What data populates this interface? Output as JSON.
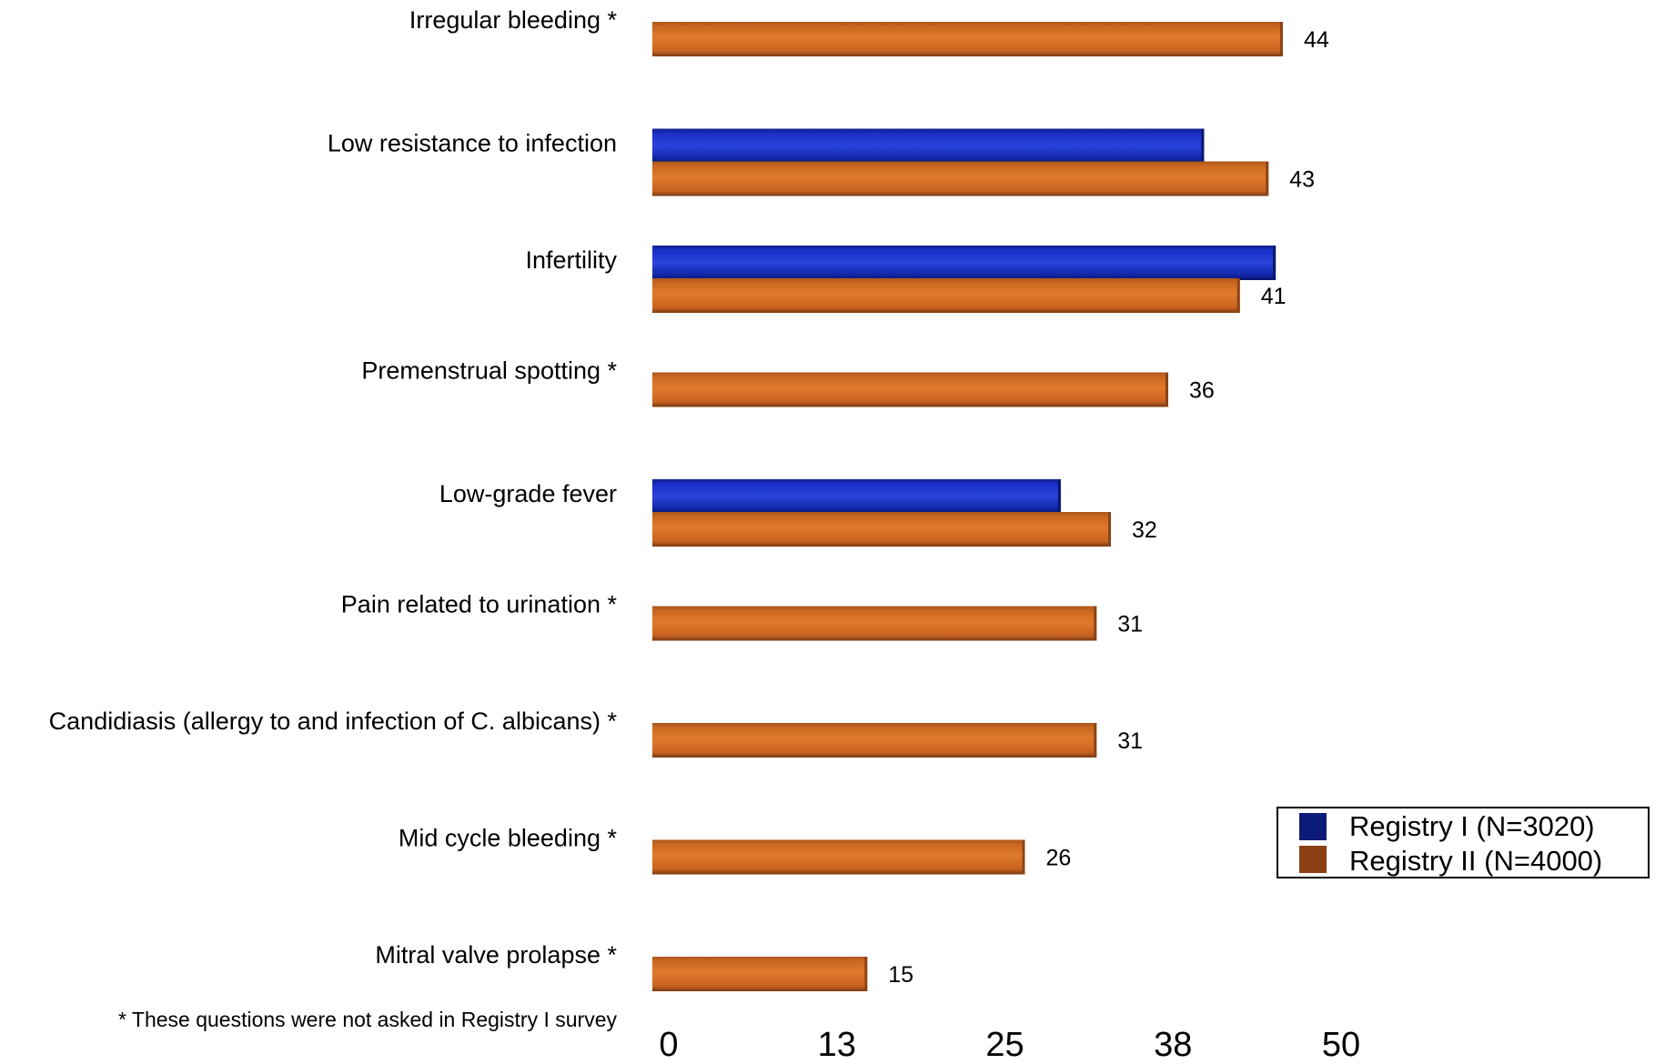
{
  "chart_data": {
    "type": "bar",
    "orientation": "horizontal",
    "categories": [
      "Irregular bleeding *",
      "Low resistance to infection",
      "Infertility",
      "Premenstrual spotting *",
      "Low-grade fever",
      "Pain related to urination *",
      "Candidiasis (allergy to and infection of C. albicans) *",
      "Mid cycle bleeding *",
      "Mitral valve prolapse *"
    ],
    "series": [
      {
        "name": "Registry I (N=3020)",
        "color": "#1428b4",
        "values": [
          null,
          38.5,
          43.5,
          null,
          28.5,
          null,
          null,
          null,
          null
        ],
        "show_labels": false
      },
      {
        "name": "Registry II (N=4000)",
        "color": "#d5691f",
        "values": [
          44,
          43,
          41,
          36,
          32,
          31,
          31,
          26,
          15
        ],
        "show_labels": true
      }
    ],
    "x_ticks": [
      "0",
      "13",
      "25",
      "38",
      "50"
    ],
    "xlim": [
      0,
      50
    ],
    "footnote": "* These questions were not asked in Registry I survey",
    "legend": {
      "position": "bottom-right",
      "items": [
        {
          "label": "Registry I (N=3020)",
          "color": "#0c1a7a"
        },
        {
          "label": "Registry II (N=4000)",
          "color": "#8a4014"
        }
      ]
    },
    "grid": false,
    "style": "3d-bars"
  }
}
